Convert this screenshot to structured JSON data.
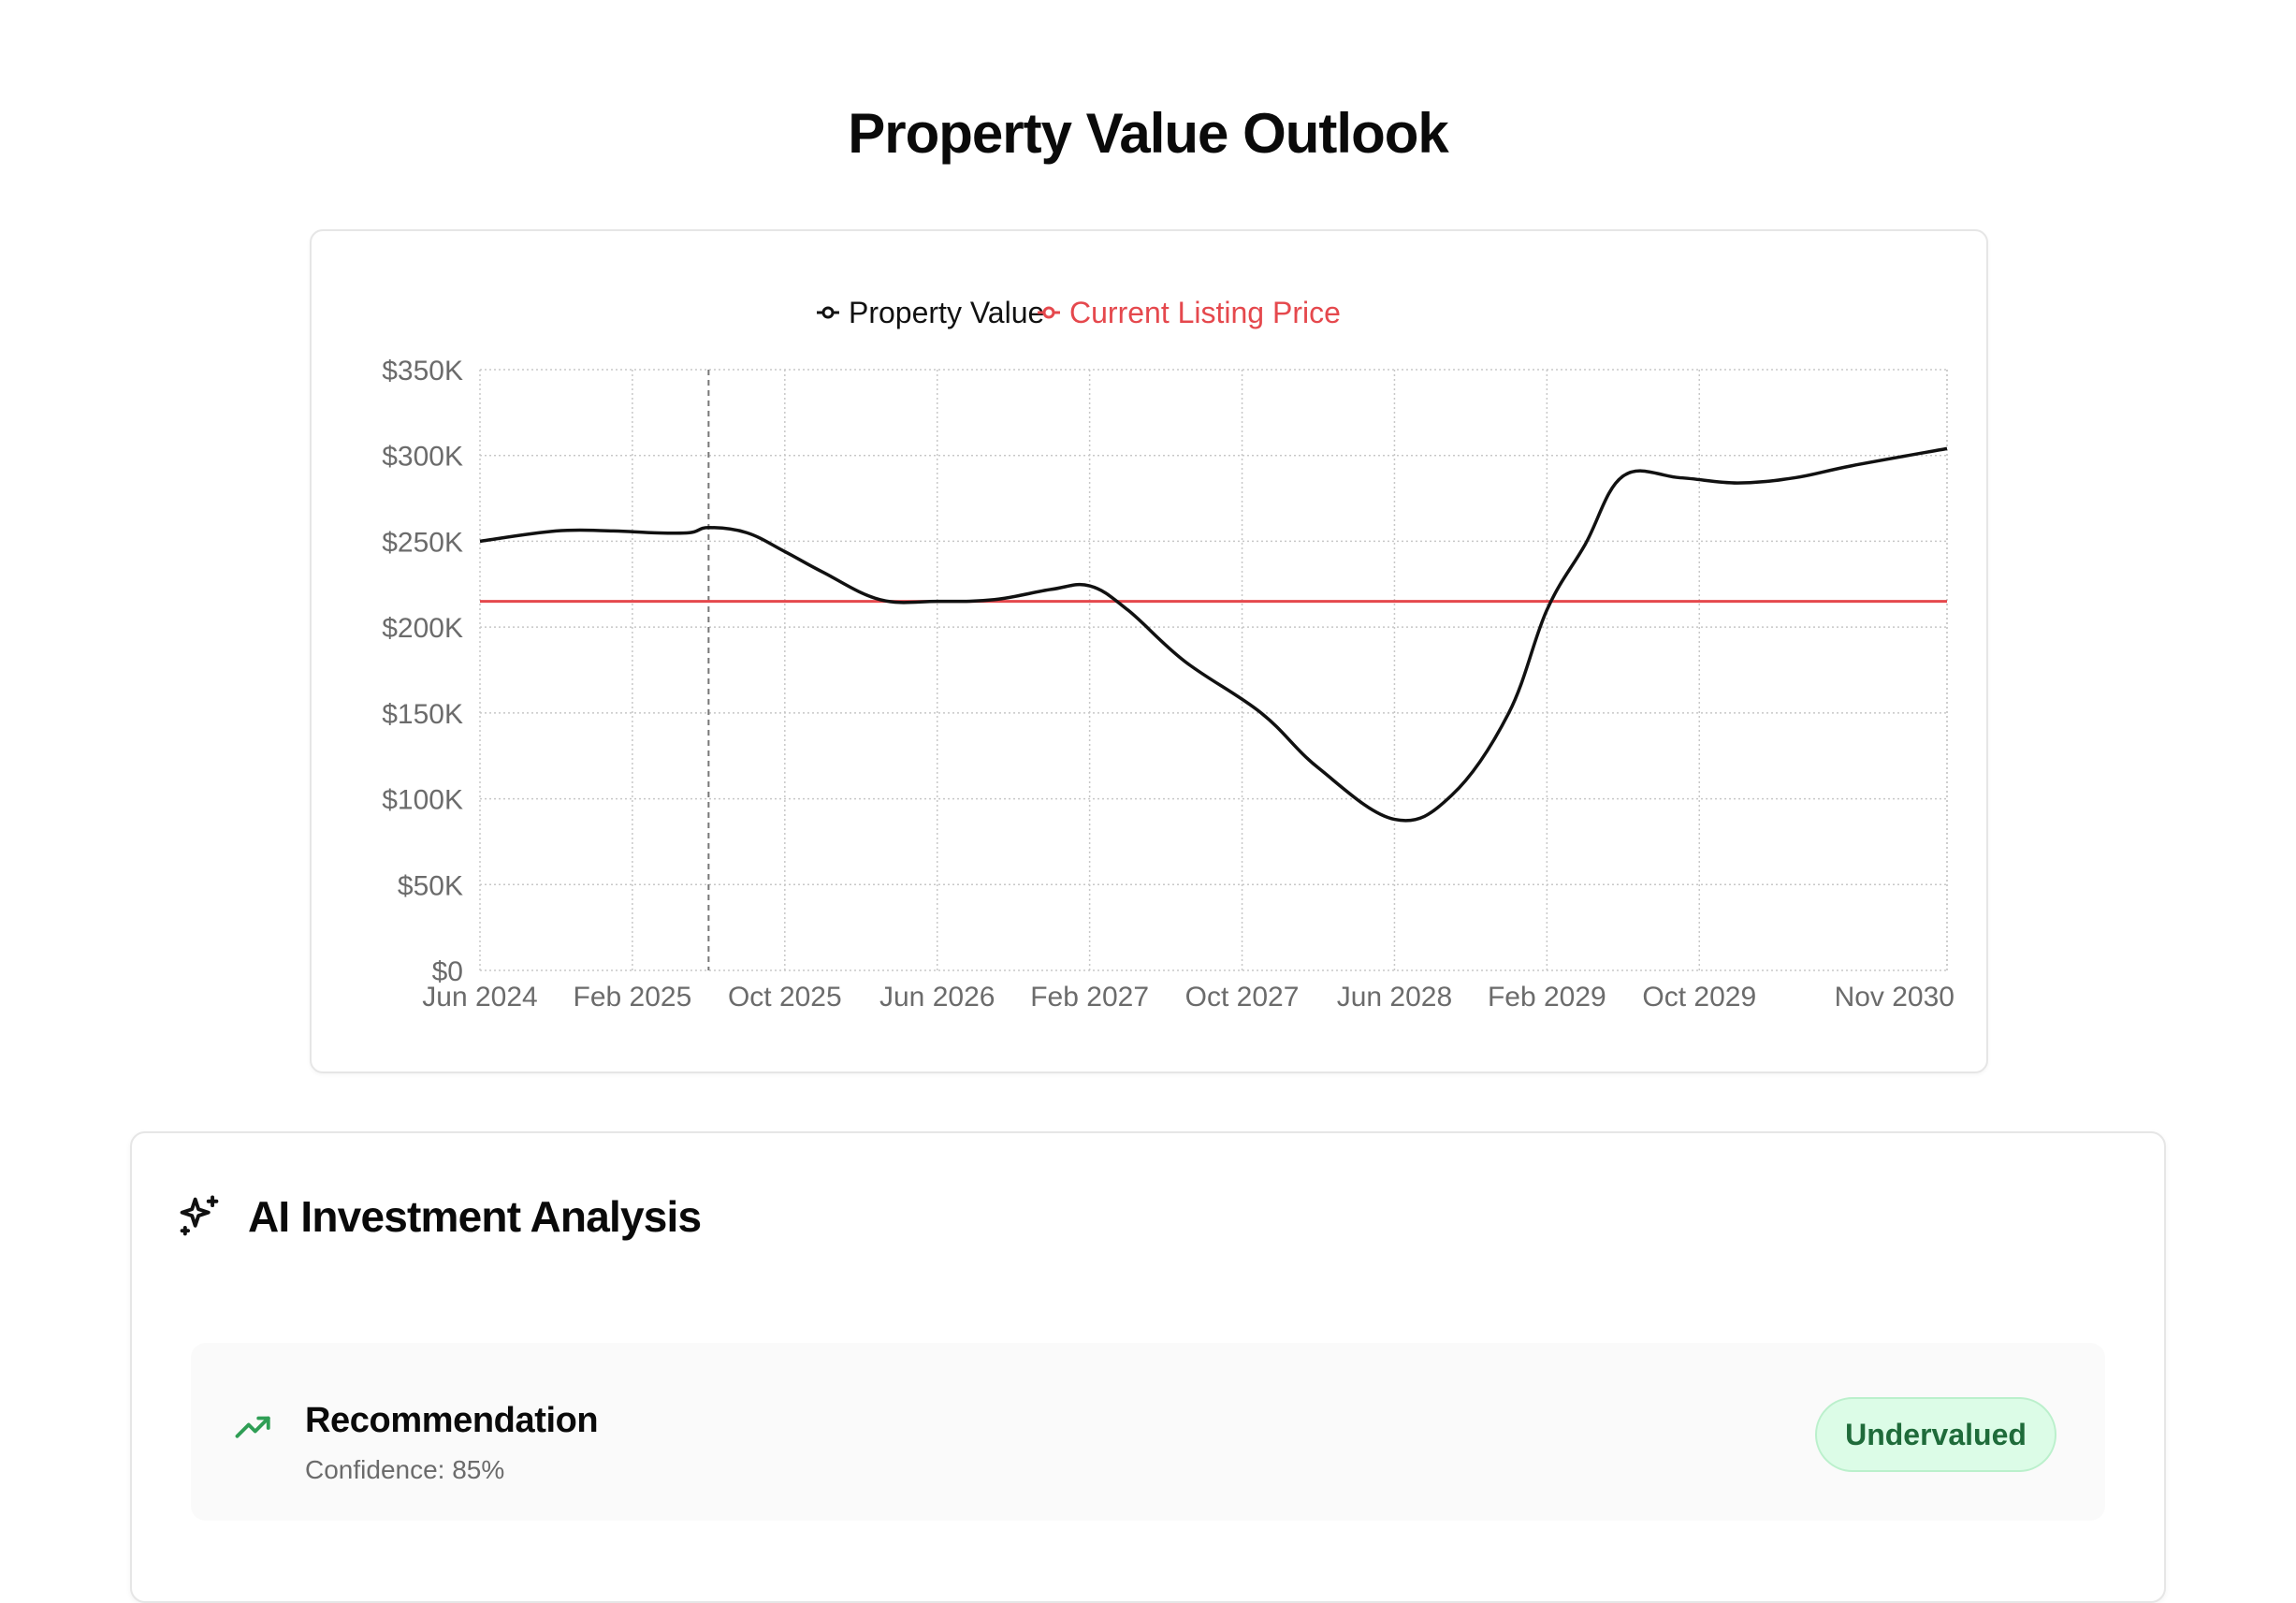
{
  "page": {
    "title": "Property Value Outlook"
  },
  "colors": {
    "property_value": "#111111",
    "listing_price": "#e5484d",
    "grid": "#c8c8c8",
    "tick_text": "#6b6b6b",
    "badge_bg": "#dcfce7",
    "badge_text": "#1f6b3a",
    "trend_icon": "#2f9e55"
  },
  "chart_data": {
    "type": "line",
    "title": "",
    "xlabel": "",
    "ylabel": "",
    "legend": {
      "placement": "top-center",
      "entries": [
        "Property Value",
        "Current Listing Price"
      ]
    },
    "grid": true,
    "x_domain": [
      "2024-06",
      "2030-11"
    ],
    "x_ticks": [
      {
        "label": "Jun 2024",
        "date": "2024-06"
      },
      {
        "label": "Feb 2025",
        "date": "2025-02"
      },
      {
        "label": "Oct 2025",
        "date": "2025-10"
      },
      {
        "label": "Jun 2026",
        "date": "2026-06"
      },
      {
        "label": "Feb 2027",
        "date": "2027-02"
      },
      {
        "label": "Oct 2027",
        "date": "2027-10"
      },
      {
        "label": "Jun 2028",
        "date": "2028-06"
      },
      {
        "label": "Feb 2029",
        "date": "2029-02"
      },
      {
        "label": "Oct 2029",
        "date": "2029-10"
      },
      {
        "label": "Nov 2030",
        "date": "2030-11"
      }
    ],
    "y_ticks": [
      {
        "label": "$0",
        "value": 0
      },
      {
        "label": "$50K",
        "value": 50000
      },
      {
        "label": "$100K",
        "value": 100000
      },
      {
        "label": "$150K",
        "value": 150000
      },
      {
        "label": "$200K",
        "value": 200000
      },
      {
        "label": "$250K",
        "value": 250000
      },
      {
        "label": "$300K",
        "value": 300000
      },
      {
        "label": "$350K",
        "value": 350000
      }
    ],
    "ylim": [
      0,
      350000
    ],
    "reference_date": "2025-06",
    "series": [
      {
        "name": "Property Value",
        "x": [
          "2024-06",
          "2024-10",
          "2025-01",
          "2025-03",
          "2025-05",
          "2025-06",
          "2025-08",
          "2025-10",
          "2025-12",
          "2026-03",
          "2026-06",
          "2026-09",
          "2026-12",
          "2027-02",
          "2027-04",
          "2027-07",
          "2027-11",
          "2028-02",
          "2028-06",
          "2028-09",
          "2028-12",
          "2029-02",
          "2029-04",
          "2029-06",
          "2029-09",
          "2029-12",
          "2030-03",
          "2030-06",
          "2030-11"
        ],
        "values": [
          250000,
          256000,
          256000,
          255000,
          255000,
          258000,
          255000,
          244000,
          232000,
          216000,
          215000,
          216000,
          222000,
          224000,
          210000,
          180000,
          150000,
          118000,
          88000,
          102000,
          150000,
          210000,
          248000,
          288000,
          287000,
          284000,
          287000,
          294000,
          304000
        ]
      },
      {
        "name": "Current Listing Price",
        "x": [
          "2024-06",
          "2030-11"
        ],
        "values": [
          215000,
          215000
        ]
      }
    ]
  },
  "analysis": {
    "title": "AI Investment Analysis",
    "sparkle_icon": "sparkles-icon",
    "recommendation": {
      "label": "Recommendation",
      "confidence_text": "Confidence: 85%",
      "confidence_value": 85,
      "badge": "Undervalued",
      "trend_icon": "trending-up-icon"
    }
  }
}
